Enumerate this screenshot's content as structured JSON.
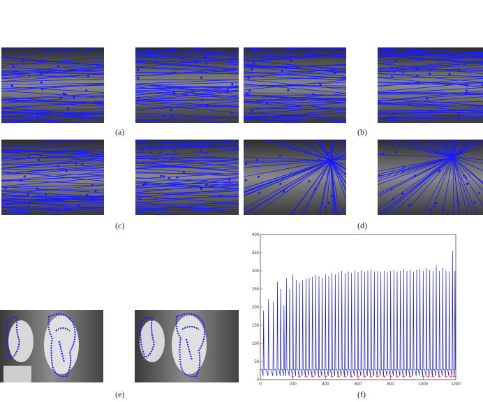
{
  "labels": {
    "a": "(a)",
    "b": "(b)",
    "c": "(c)",
    "d": "(d)",
    "e": "(e)",
    "f": "(f)"
  },
  "colors": {
    "epipolar_line": "#1a1aff",
    "contour": "#1a1aff",
    "marker": "#ff2020",
    "series": "#1c1cd0"
  },
  "chart_data": {
    "type": "line",
    "title": "",
    "xlabel": "",
    "ylabel": "",
    "xlim": [
      0,
      1200
    ],
    "ylim": [
      0,
      400
    ],
    "x_ticks": [
      "0",
      "200",
      "400",
      "600",
      "800",
      "1000",
      "1200"
    ],
    "y_ticks": [
      "0",
      "50",
      "100",
      "150",
      "200",
      "250",
      "300",
      "350",
      "400"
    ],
    "series": [
      {
        "peaks": [
          {
            "x": 20,
            "y": 190
          },
          {
            "x": 50,
            "y": 222
          },
          {
            "x": 80,
            "y": 215
          },
          {
            "x": 105,
            "y": 270
          },
          {
            "x": 125,
            "y": 250
          },
          {
            "x": 145,
            "y": 205
          },
          {
            "x": 160,
            "y": 280
          },
          {
            "x": 180,
            "y": 250
          },
          {
            "x": 200,
            "y": 290
          },
          {
            "x": 220,
            "y": 275
          },
          {
            "x": 240,
            "y": 268
          },
          {
            "x": 260,
            "y": 275
          },
          {
            "x": 280,
            "y": 278
          },
          {
            "x": 300,
            "y": 280
          },
          {
            "x": 320,
            "y": 283
          },
          {
            "x": 340,
            "y": 288
          },
          {
            "x": 360,
            "y": 285
          },
          {
            "x": 380,
            "y": 280
          },
          {
            "x": 400,
            "y": 290
          },
          {
            "x": 420,
            "y": 285
          },
          {
            "x": 440,
            "y": 295
          },
          {
            "x": 460,
            "y": 290
          },
          {
            "x": 480,
            "y": 295
          },
          {
            "x": 500,
            "y": 300
          },
          {
            "x": 520,
            "y": 293
          },
          {
            "x": 540,
            "y": 298
          },
          {
            "x": 560,
            "y": 295
          },
          {
            "x": 580,
            "y": 300
          },
          {
            "x": 600,
            "y": 296
          },
          {
            "x": 620,
            "y": 302
          },
          {
            "x": 640,
            "y": 297
          },
          {
            "x": 660,
            "y": 300
          },
          {
            "x": 680,
            "y": 303
          },
          {
            "x": 700,
            "y": 298
          },
          {
            "x": 720,
            "y": 300
          },
          {
            "x": 740,
            "y": 297
          },
          {
            "x": 760,
            "y": 300
          },
          {
            "x": 780,
            "y": 296
          },
          {
            "x": 800,
            "y": 300
          },
          {
            "x": 820,
            "y": 302
          },
          {
            "x": 840,
            "y": 298
          },
          {
            "x": 860,
            "y": 300
          },
          {
            "x": 880,
            "y": 305
          },
          {
            "x": 900,
            "y": 300
          },
          {
            "x": 920,
            "y": 302
          },
          {
            "x": 940,
            "y": 298
          },
          {
            "x": 960,
            "y": 303
          },
          {
            "x": 980,
            "y": 305
          },
          {
            "x": 1000,
            "y": 300
          },
          {
            "x": 1020,
            "y": 308
          },
          {
            "x": 1040,
            "y": 302
          },
          {
            "x": 1060,
            "y": 300
          },
          {
            "x": 1080,
            "y": 315
          },
          {
            "x": 1100,
            "y": 300
          },
          {
            "x": 1120,
            "y": 308
          },
          {
            "x": 1140,
            "y": 300
          },
          {
            "x": 1160,
            "y": 298
          },
          {
            "x": 1180,
            "y": 355
          },
          {
            "x": 1195,
            "y": 300
          }
        ],
        "baseline": 28,
        "troughs_y": 10
      }
    ],
    "markers": {
      "symbol": "+",
      "y": 10,
      "x": [
        200,
        240,
        280,
        320,
        360,
        400,
        440,
        480,
        520,
        560,
        600,
        640,
        680,
        720,
        760,
        800,
        840,
        880,
        920,
        1000,
        1030,
        1060,
        1100,
        1140,
        1170,
        1190
      ]
    }
  }
}
